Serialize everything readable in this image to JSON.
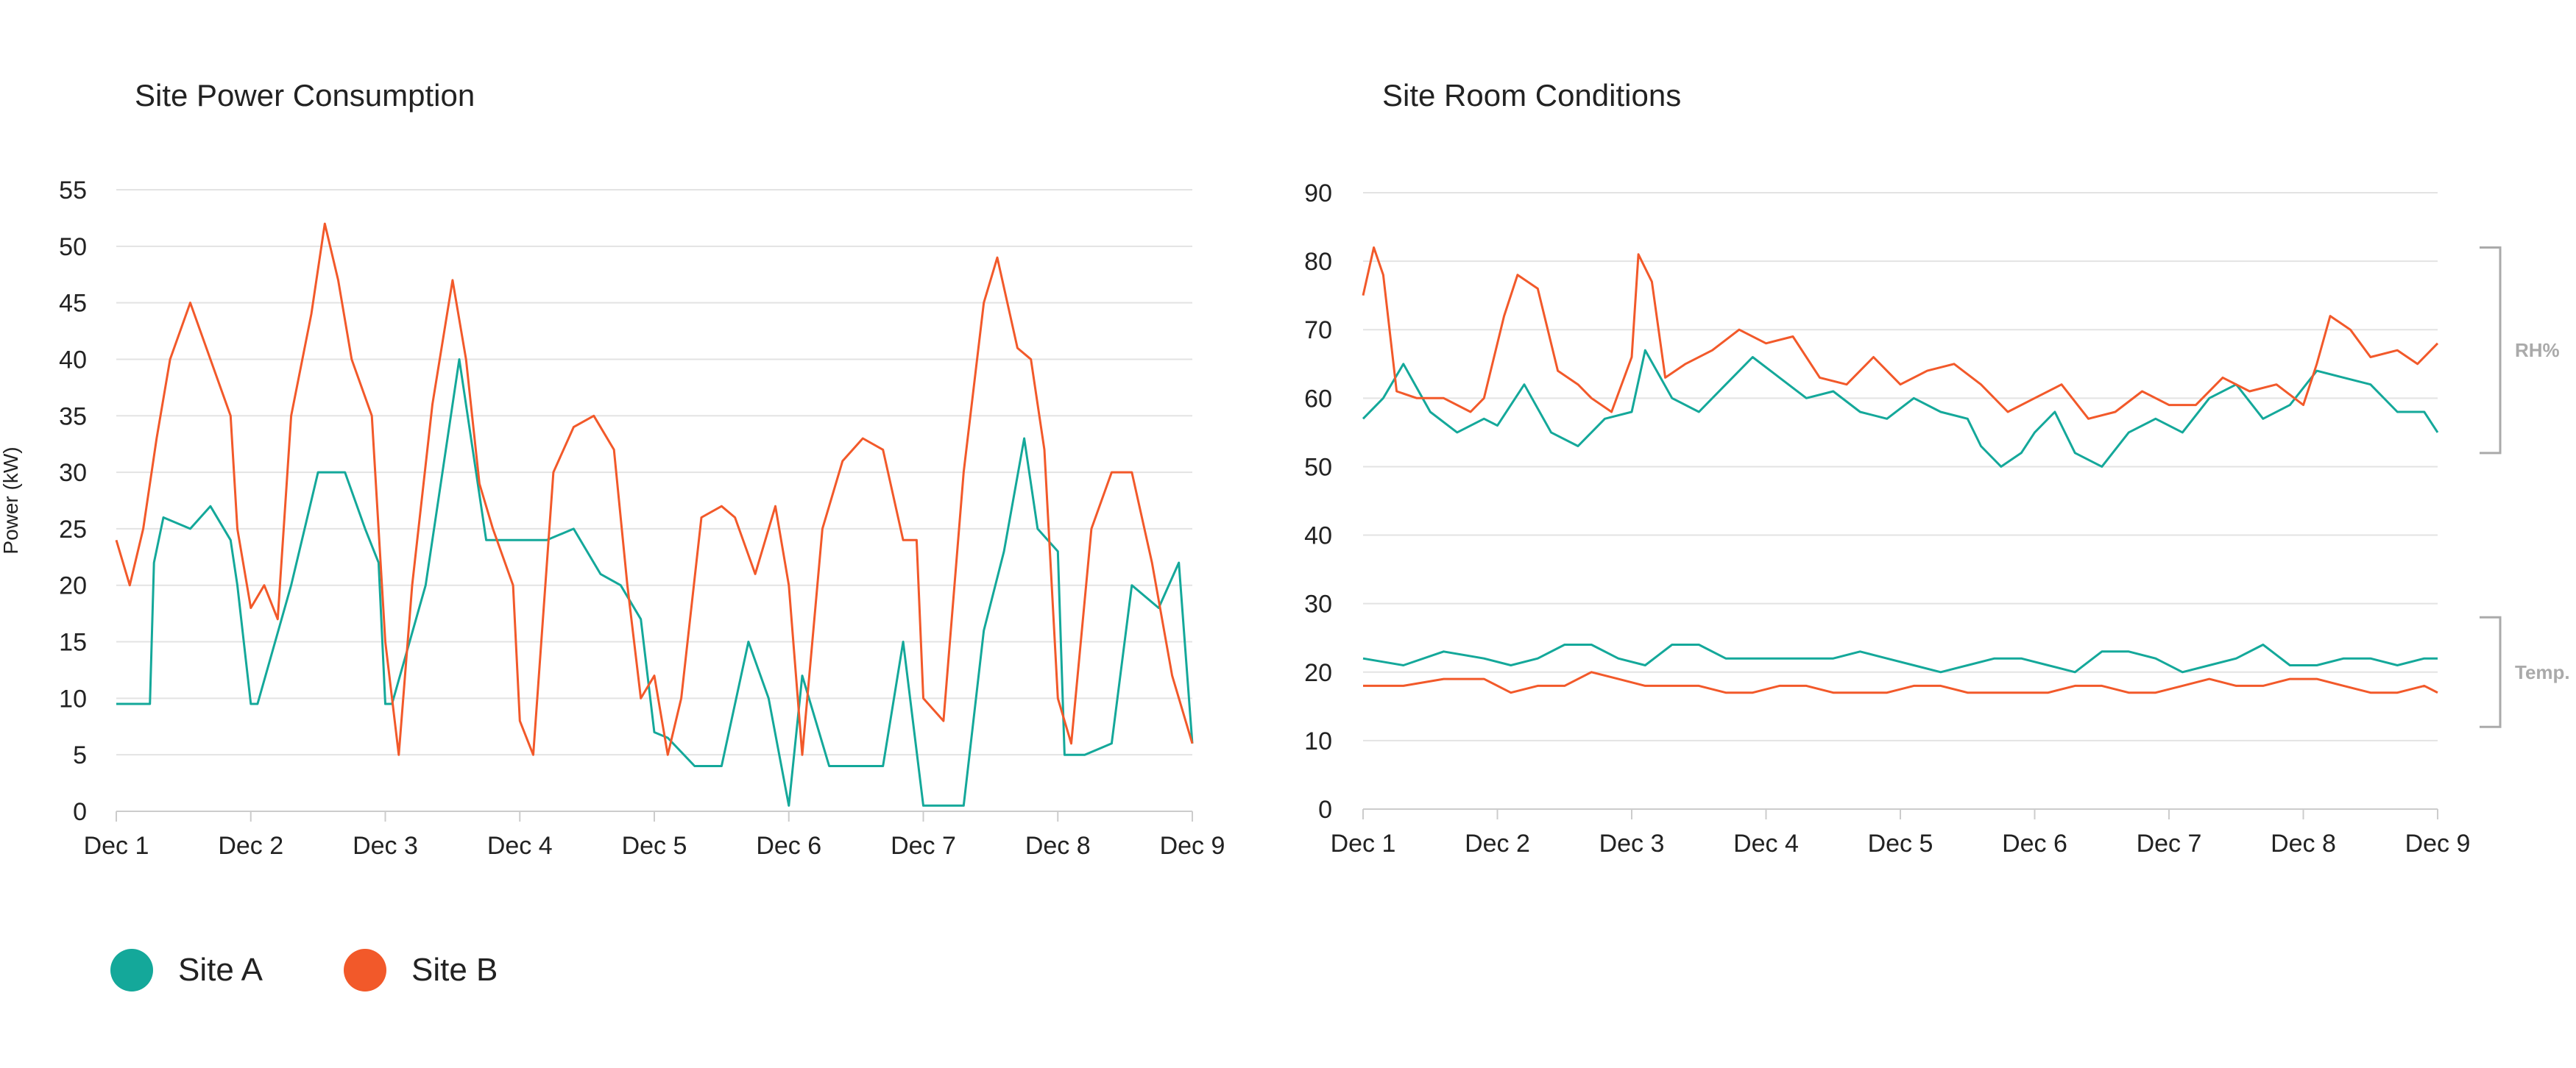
{
  "colors": {
    "site_a": "#14a89a",
    "site_b": "#f2592a",
    "grid": "#e3e3e3",
    "axis": "#cccccc",
    "bracket": "#aaaaaa"
  },
  "legend": [
    {
      "label": "Site A",
      "color": "#14a89a"
    },
    {
      "label": "Site B",
      "color": "#f2592a"
    }
  ],
  "chart_data": [
    {
      "type": "line",
      "title": "Site Power Consumption",
      "xlabel": "",
      "ylabel": "Power (kW)",
      "x_ticks": [
        "Dec 1",
        "Dec 2",
        "Dec 3",
        "Dec 4",
        "Dec 5",
        "Dec 6",
        "Dec 7",
        "Dec 8",
        "Dec 9"
      ],
      "xlim": [
        0,
        8
      ],
      "ylim": [
        0,
        55
      ],
      "y_ticks": [
        0,
        5,
        10,
        15,
        20,
        25,
        30,
        35,
        40,
        45,
        50,
        55
      ],
      "grid": true,
      "series": [
        {
          "name": "Site A",
          "color": "#14a89a",
          "x": [
            0.0,
            0.25,
            0.28,
            0.35,
            0.55,
            0.7,
            0.85,
            0.9,
            1.0,
            1.05,
            1.3,
            1.4,
            1.5,
            1.7,
            1.85,
            1.95,
            2.0,
            2.05,
            2.3,
            2.4,
            2.55,
            2.65,
            2.75,
            2.85,
            3.0,
            3.2,
            3.4,
            3.6,
            3.75,
            3.9,
            4.0,
            4.1,
            4.3,
            4.5,
            4.7,
            4.85,
            5.0,
            5.1,
            5.3,
            5.5,
            5.7,
            5.85,
            6.0,
            6.1,
            6.3,
            6.45,
            6.6,
            6.75,
            6.85,
            7.0,
            7.05,
            7.2,
            7.4,
            7.55,
            7.75,
            7.9,
            8.0
          ],
          "y": [
            9.5,
            9.5,
            22,
            26,
            25,
            27,
            24,
            20,
            9.5,
            9.5,
            20,
            25,
            30,
            30,
            25,
            22,
            9.5,
            9.5,
            20,
            28,
            40,
            32,
            24,
            24,
            24,
            24,
            25,
            21,
            20,
            17,
            7,
            6.5,
            4,
            4,
            15,
            10,
            0.5,
            12,
            4,
            4,
            4,
            15,
            0.5,
            0.5,
            0.5,
            16,
            23,
            33,
            25,
            23,
            5,
            5,
            6,
            20,
            18,
            22,
            6
          ]
        },
        {
          "name": "Site B",
          "color": "#f2592a",
          "x": [
            0.0,
            0.1,
            0.2,
            0.3,
            0.4,
            0.55,
            0.7,
            0.85,
            0.9,
            1.0,
            1.1,
            1.2,
            1.3,
            1.45,
            1.55,
            1.65,
            1.75,
            1.9,
            2.0,
            2.1,
            2.2,
            2.35,
            2.5,
            2.6,
            2.7,
            2.8,
            2.95,
            3.0,
            3.1,
            3.25,
            3.4,
            3.55,
            3.7,
            3.8,
            3.9,
            4.0,
            4.1,
            4.2,
            4.35,
            4.5,
            4.6,
            4.75,
            4.9,
            5.0,
            5.1,
            5.25,
            5.4,
            5.55,
            5.7,
            5.85,
            5.95,
            6.0,
            6.15,
            6.3,
            6.45,
            6.55,
            6.7,
            6.8,
            6.9,
            7.0,
            7.1,
            7.25,
            7.4,
            7.55,
            7.7,
            7.85,
            8.0
          ],
          "y": [
            24,
            20,
            25,
            33,
            40,
            45,
            40,
            35,
            25,
            18,
            20,
            17,
            35,
            44,
            52,
            47,
            40,
            35,
            15,
            5,
            20,
            36,
            47,
            40,
            29,
            25,
            20,
            8,
            5,
            30,
            34,
            35,
            32,
            20,
            10,
            12,
            5,
            10,
            26,
            27,
            26,
            21,
            27,
            20,
            5,
            25,
            31,
            33,
            32,
            24,
            24,
            10,
            8,
            30,
            45,
            49,
            41,
            40,
            32,
            10,
            6,
            25,
            30,
            30,
            22,
            12,
            6
          ]
        }
      ]
    },
    {
      "type": "line",
      "title": "Site Room Conditions",
      "xlabel": "",
      "ylabel": "",
      "x_ticks": [
        "Dec 1",
        "Dec 2",
        "Dec 3",
        "Dec 4",
        "Dec 5",
        "Dec 6",
        "Dec 7",
        "Dec 8",
        "Dec 9"
      ],
      "xlim": [
        0,
        8
      ],
      "ylim": [
        0,
        90
      ],
      "y_ticks": [
        0,
        10,
        20,
        30,
        40,
        50,
        60,
        70,
        80,
        90
      ],
      "grid": true,
      "annotations": [
        {
          "label": "RH%",
          "range": [
            52,
            82
          ]
        },
        {
          "label": "Temp.",
          "range": [
            12,
            28
          ]
        }
      ],
      "series": [
        {
          "name": "Site A",
          "color": "#14a89a",
          "x": [
            0.0,
            0.15,
            0.3,
            0.5,
            0.7,
            0.9,
            1.0,
            1.2,
            1.4,
            1.6,
            1.8,
            2.0,
            2.1,
            2.3,
            2.5,
            2.7,
            2.9,
            3.1,
            3.3,
            3.5,
            3.7,
            3.9,
            4.1,
            4.3,
            4.5,
            4.6,
            4.75,
            4.9,
            5.0,
            5.15,
            5.3,
            5.5,
            5.7,
            5.9,
            6.1,
            6.3,
            6.5,
            6.7,
            6.9,
            7.1,
            7.3,
            7.5,
            7.7,
            7.9,
            8.0
          ],
          "y": [
            57,
            60,
            65,
            58,
            55,
            57,
            56,
            62,
            55,
            53,
            57,
            58,
            67,
            60,
            58,
            62,
            66,
            63,
            60,
            61,
            58,
            57,
            60,
            58,
            57,
            53,
            50,
            52,
            55,
            58,
            52,
            50,
            55,
            57,
            55,
            60,
            62,
            57,
            59,
            64,
            63,
            62,
            58,
            58,
            55
          ]
        },
        {
          "name": "Site B",
          "color": "#f2592a",
          "x": [
            0.0,
            0.08,
            0.15,
            0.25,
            0.4,
            0.6,
            0.8,
            0.9,
            1.05,
            1.15,
            1.3,
            1.45,
            1.6,
            1.7,
            1.85,
            2.0,
            2.05,
            2.15,
            2.25,
            2.4,
            2.6,
            2.8,
            3.0,
            3.2,
            3.4,
            3.6,
            3.8,
            4.0,
            4.2,
            4.4,
            4.6,
            4.8,
            5.0,
            5.2,
            5.4,
            5.6,
            5.8,
            6.0,
            6.2,
            6.4,
            6.6,
            6.8,
            7.0,
            7.1,
            7.2,
            7.35,
            7.5,
            7.7,
            7.85,
            8.0
          ],
          "y": [
            75,
            82,
            78,
            61,
            60,
            60,
            58,
            60,
            72,
            78,
            76,
            64,
            62,
            60,
            58,
            66,
            81,
            77,
            63,
            65,
            67,
            70,
            68,
            69,
            63,
            62,
            66,
            62,
            64,
            65,
            62,
            58,
            60,
            62,
            57,
            58,
            61,
            59,
            59,
            63,
            61,
            62,
            59,
            65,
            72,
            70,
            66,
            67,
            65,
            68
          ]
        },
        {
          "name": "Site A",
          "color": "#14a89a",
          "x": [
            0.0,
            0.3,
            0.6,
            0.9,
            1.1,
            1.3,
            1.5,
            1.7,
            1.9,
            2.1,
            2.3,
            2.5,
            2.7,
            2.9,
            3.1,
            3.3,
            3.5,
            3.7,
            3.9,
            4.1,
            4.3,
            4.5,
            4.7,
            4.9,
            5.1,
            5.3,
            5.5,
            5.7,
            5.9,
            6.1,
            6.3,
            6.5,
            6.7,
            6.9,
            7.1,
            7.3,
            7.5,
            7.7,
            7.9,
            8.0
          ],
          "y": [
            22,
            21,
            23,
            22,
            21,
            22,
            24,
            24,
            22,
            21,
            24,
            24,
            22,
            22,
            22,
            22,
            22,
            23,
            22,
            21,
            20,
            21,
            22,
            22,
            21,
            20,
            23,
            23,
            22,
            20,
            21,
            22,
            24,
            21,
            21,
            22,
            22,
            21,
            22,
            22
          ]
        },
        {
          "name": "Site B",
          "color": "#f2592a",
          "x": [
            0.0,
            0.3,
            0.6,
            0.9,
            1.1,
            1.3,
            1.5,
            1.7,
            1.9,
            2.1,
            2.3,
            2.5,
            2.7,
            2.9,
            3.1,
            3.3,
            3.5,
            3.7,
            3.9,
            4.1,
            4.3,
            4.5,
            4.7,
            4.9,
            5.1,
            5.3,
            5.5,
            5.7,
            5.9,
            6.1,
            6.3,
            6.5,
            6.7,
            6.9,
            7.1,
            7.3,
            7.5,
            7.7,
            7.9,
            8.0
          ],
          "y": [
            18,
            18,
            19,
            19,
            17,
            18,
            18,
            20,
            19,
            18,
            18,
            18,
            17,
            17,
            18,
            18,
            17,
            17,
            17,
            18,
            18,
            17,
            17,
            17,
            17,
            18,
            18,
            17,
            17,
            18,
            19,
            18,
            18,
            19,
            19,
            18,
            17,
            17,
            18,
            17
          ]
        }
      ]
    }
  ]
}
